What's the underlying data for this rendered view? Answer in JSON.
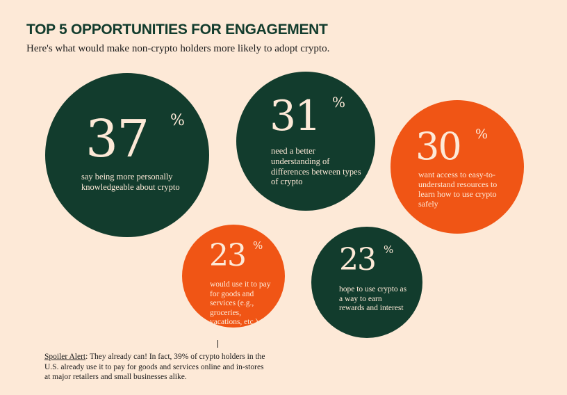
{
  "title": "TOP 5 OPPORTUNITIES FOR ENGAGEMENT",
  "subtitle": "Here's what would make non-crypto holders more likely to adopt crypto.",
  "colors": {
    "background": "#fde9d7",
    "dark_green": "#123c2d",
    "orange": "#f05515",
    "bubble_text": "#fde9d7"
  },
  "chart_data": {
    "type": "bubble",
    "unit": "%",
    "values": [
      37,
      31,
      30,
      23,
      23
    ],
    "series": [
      {
        "value": 37,
        "value_label": "37",
        "percent_sign": "%",
        "description": "say being more personally knowledgeable about crypto",
        "color": "dark_green"
      },
      {
        "value": 31,
        "value_label": "31",
        "percent_sign": "%",
        "description": "need a better understanding of differences between types of crypto",
        "color": "dark_green"
      },
      {
        "value": 30,
        "value_label": "30",
        "percent_sign": "%",
        "description": "want access to easy-to-understand resources to learn how to use crypto safely",
        "color": "orange"
      },
      {
        "value": 23,
        "value_label": "23",
        "percent_sign": "%",
        "description": "would use it to pay for goods and services (e.g., groceries, vacations, etc.)",
        "color": "orange"
      },
      {
        "value": 23,
        "value_label": "23",
        "percent_sign": "%",
        "description": "hope to use crypto as a way to earn rewards and interest",
        "color": "dark_green"
      }
    ]
  },
  "footnote": {
    "lead": "Spoiler Alert",
    "text": ": They already can! In fact, 39% of crypto holders in the U.S. already use it to pay for goods and services online and in-stores at major retailers and small businesses alike."
  }
}
